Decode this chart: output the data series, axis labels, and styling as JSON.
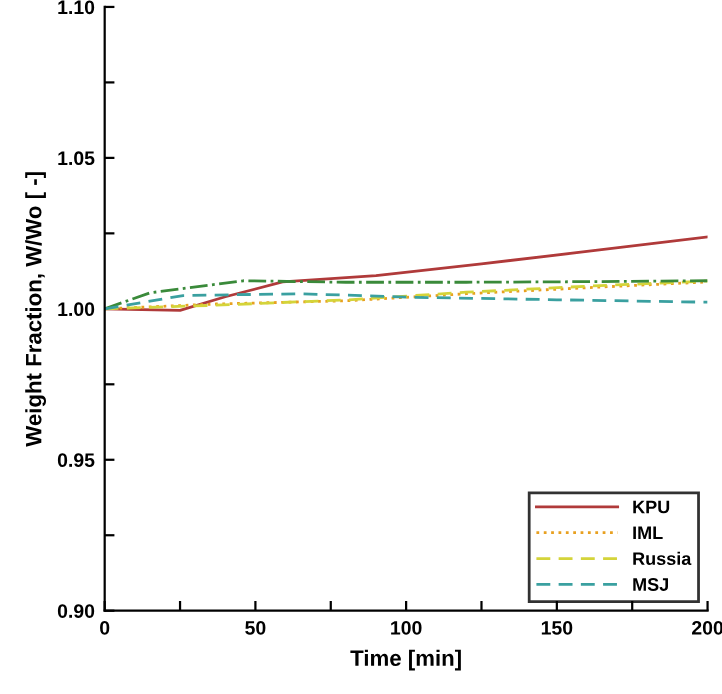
{
  "chart_data": {
    "type": "line",
    "xlabel": "Time [min]",
    "ylabel": "Weight Fraction, W/Wo [ -]",
    "xlim": [
      0,
      200
    ],
    "xticks": [
      0,
      {
        "value": 25,
        "label": null
      },
      50,
      {
        "value": 75,
        "label": null
      },
      100,
      {
        "value": 125,
        "label": null
      },
      150,
      {
        "value": 175,
        "label": null
      },
      200
    ],
    "ylim": [
      0.9,
      1.1
    ],
    "yticks": [
      {
        "value": 0.9,
        "label": "0.90"
      },
      {
        "value": 0.925,
        "label": null
      },
      0.95,
      {
        "value": 0.975,
        "label": null
      },
      {
        "value": 1.0,
        "label": "1.00"
      },
      {
        "value": 1.025,
        "label": null
      },
      1.05,
      {
        "value": 1.075,
        "label": null
      },
      {
        "value": 1.1,
        "label": "1.10"
      }
    ],
    "grid": false,
    "legend": "bottom right",
    "series": [
      {
        "name": "KPU",
        "color": "#b03a3a",
        "line_style": "solid",
        "x": [
          0,
          25,
          40,
          59,
          90,
          125,
          160,
          200
        ],
        "values": [
          1.0,
          0.9995,
          1.004,
          1.0089,
          1.011,
          1.0149,
          1.019,
          1.0238
        ]
      },
      {
        "name": "IML",
        "color": "#e8a020",
        "line_style": "dotted",
        "x": [
          0,
          37,
          81,
          120,
          160,
          200
        ],
        "values": [
          1.0,
          1.0016,
          1.0027,
          1.005,
          1.007,
          1.0089
        ]
      },
      {
        "name": "Russia",
        "color": "#d4d43a",
        "line_style": "dashed",
        "x": [
          0,
          37,
          81,
          120,
          160,
          200
        ],
        "values": [
          1.0,
          1.0012,
          1.003,
          1.0055,
          1.0075,
          1.0092
        ]
      },
      {
        "color": "#3a8a3a",
        "line_style": "dashdot",
        "x": [
          0,
          15,
          46,
          80,
          120,
          160,
          200
        ],
        "values": [
          1.0,
          1.0053,
          1.0093,
          1.0088,
          1.0088,
          1.009,
          1.0093
        ]
      },
      {
        "name": "MSJ",
        "color": "#3aa0a0",
        "line_style": "dashed",
        "x": [
          0,
          26,
          65,
          103,
          150,
          200
        ],
        "values": [
          1.0,
          1.0044,
          1.005,
          1.0038,
          1.003,
          1.0022
        ]
      }
    ]
  }
}
